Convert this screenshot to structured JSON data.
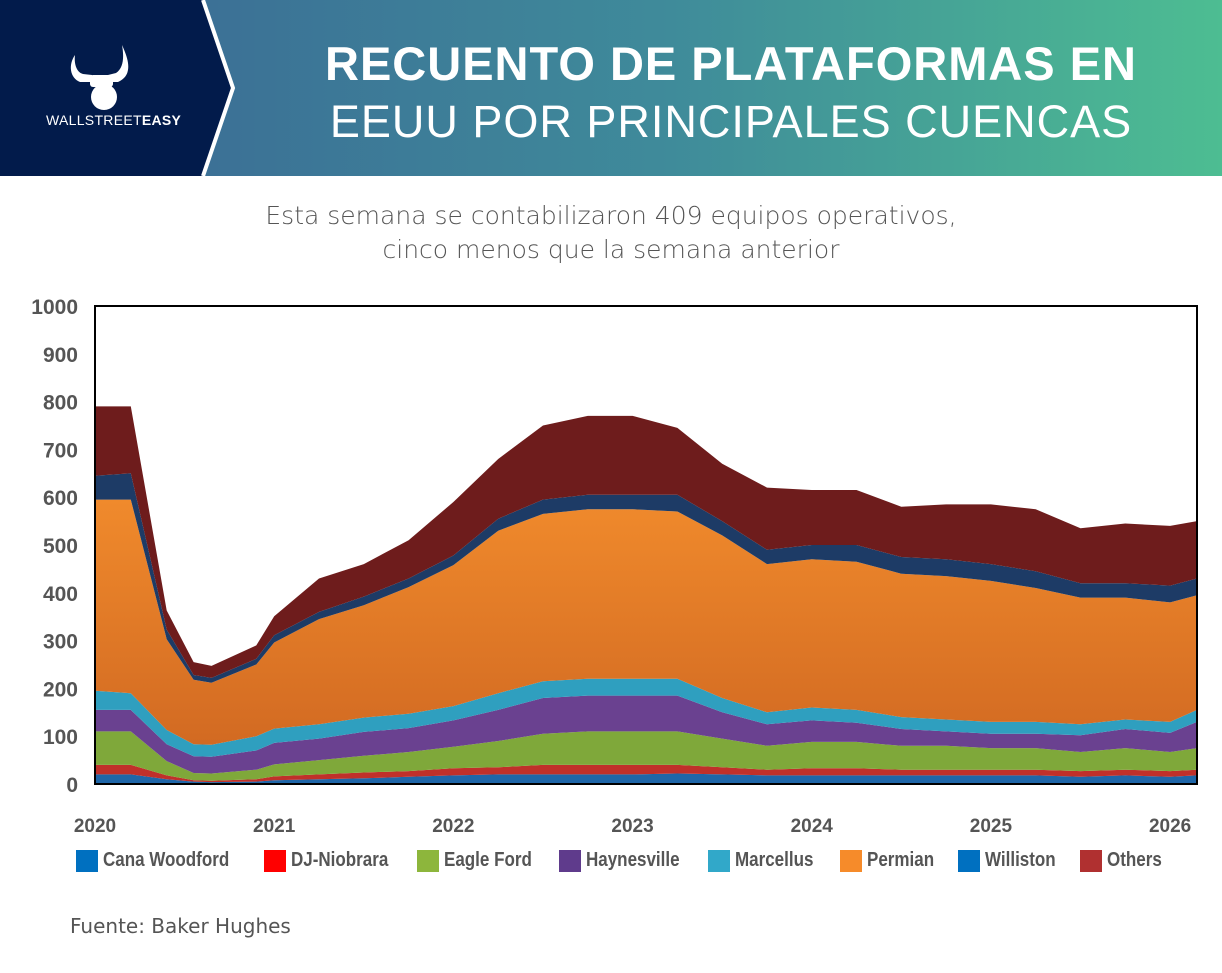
{
  "header": {
    "logo_text_light": "WALLSTREET",
    "logo_text_bold": "EASY",
    "title_line1": "RECUENTO DE PLATAFORMAS EN",
    "title_line2": "EEUU POR PRINCIPALES CUENCAS"
  },
  "subtitle_line1": "Esta semana se contabilizaron 409 equipos operativos,",
  "subtitle_line2": "cinco menos que la semana anterior",
  "source": "Fuente: Baker Hughes",
  "chart_data": {
    "type": "area",
    "stacked": true,
    "title": "Recuento de plataformas en EEUU por principales cuencas",
    "ylim": [
      0,
      1000
    ],
    "xlim": [
      2020.0,
      2026.15
    ],
    "yticks": [
      "0",
      "100",
      "200",
      "300",
      "400",
      "500",
      "600",
      "700",
      "800",
      "900",
      "1000"
    ],
    "xticks": [
      "2020",
      "2021",
      "2022",
      "2023",
      "2024",
      "2025",
      "2026"
    ],
    "legend_position": "bottom",
    "x": [
      2020.0,
      2020.2,
      2020.4,
      2020.55,
      2020.65,
      2020.9,
      2021.0,
      2021.25,
      2021.5,
      2021.75,
      2022.0,
      2022.25,
      2022.5,
      2022.75,
      2023.0,
      2023.25,
      2023.5,
      2023.75,
      2024.0,
      2024.25,
      2024.5,
      2024.75,
      2025.0,
      2025.25,
      2025.5,
      2025.75,
      2026.0,
      2026.15
    ],
    "series": [
      {
        "name": "Cana Woodford",
        "color": "#1f66a8",
        "legend_color": "#0070c0",
        "values": [
          20,
          20,
          10,
          5,
          4,
          5,
          8,
          10,
          12,
          15,
          18,
          20,
          20,
          20,
          20,
          22,
          20,
          18,
          18,
          18,
          18,
          18,
          18,
          18,
          15,
          18,
          15,
          18
        ]
      },
      {
        "name": "DJ-Niobrara",
        "color": "#c0302a",
        "legend_color": "#ff0000",
        "values": [
          20,
          20,
          8,
          3,
          3,
          5,
          8,
          10,
          12,
          12,
          15,
          15,
          20,
          20,
          20,
          18,
          15,
          12,
          15,
          15,
          12,
          12,
          12,
          12,
          12,
          12,
          12,
          12
        ]
      },
      {
        "name": "Eagle Ford",
        "color": "#7fa83a",
        "legend_color": "#8db63c",
        "values": [
          70,
          70,
          30,
          15,
          15,
          20,
          25,
          30,
          35,
          40,
          45,
          55,
          65,
          70,
          70,
          70,
          60,
          50,
          55,
          55,
          50,
          50,
          45,
          45,
          40,
          45,
          40,
          45
        ]
      },
      {
        "name": "Haynesville",
        "color": "#6a4190",
        "legend_color": "#5f3b8c",
        "values": [
          45,
          45,
          35,
          35,
          35,
          40,
          45,
          45,
          50,
          50,
          55,
          65,
          75,
          75,
          75,
          75,
          55,
          45,
          45,
          40,
          35,
          30,
          30,
          30,
          35,
          40,
          40,
          55
        ]
      },
      {
        "name": "Marcellus",
        "color": "#2f9fbf",
        "legend_color": "#31a8c9",
        "values": [
          40,
          35,
          30,
          25,
          25,
          30,
          30,
          30,
          30,
          30,
          30,
          35,
          35,
          35,
          35,
          35,
          30,
          25,
          27,
          27,
          25,
          25,
          25,
          25,
          23,
          20,
          23,
          25
        ]
      },
      {
        "name": "Permian",
        "color": "#e0792a",
        "legend_color": "#f68b2a",
        "values": [
          400,
          405,
          190,
          135,
          130,
          150,
          180,
          220,
          235,
          265,
          295,
          340,
          350,
          355,
          355,
          350,
          340,
          310,
          310,
          310,
          300,
          300,
          295,
          280,
          265,
          255,
          250,
          240
        ]
      },
      {
        "name": "Williston",
        "color": "#1d3b66",
        "legend_color": "#0070c0",
        "values": [
          50,
          55,
          20,
          10,
          10,
          12,
          15,
          15,
          18,
          18,
          20,
          25,
          30,
          30,
          30,
          35,
          30,
          30,
          30,
          35,
          35,
          35,
          35,
          35,
          30,
          30,
          35,
          35
        ]
      },
      {
        "name": "Others",
        "color": "#6e1c1c",
        "legend_color": "#b03030",
        "values": [
          145,
          140,
          40,
          27,
          25,
          28,
          40,
          70,
          68,
          80,
          112,
          125,
          155,
          165,
          165,
          140,
          120,
          130,
          115,
          115,
          105,
          115,
          125,
          130,
          115,
          125,
          125,
          120
        ]
      }
    ]
  }
}
